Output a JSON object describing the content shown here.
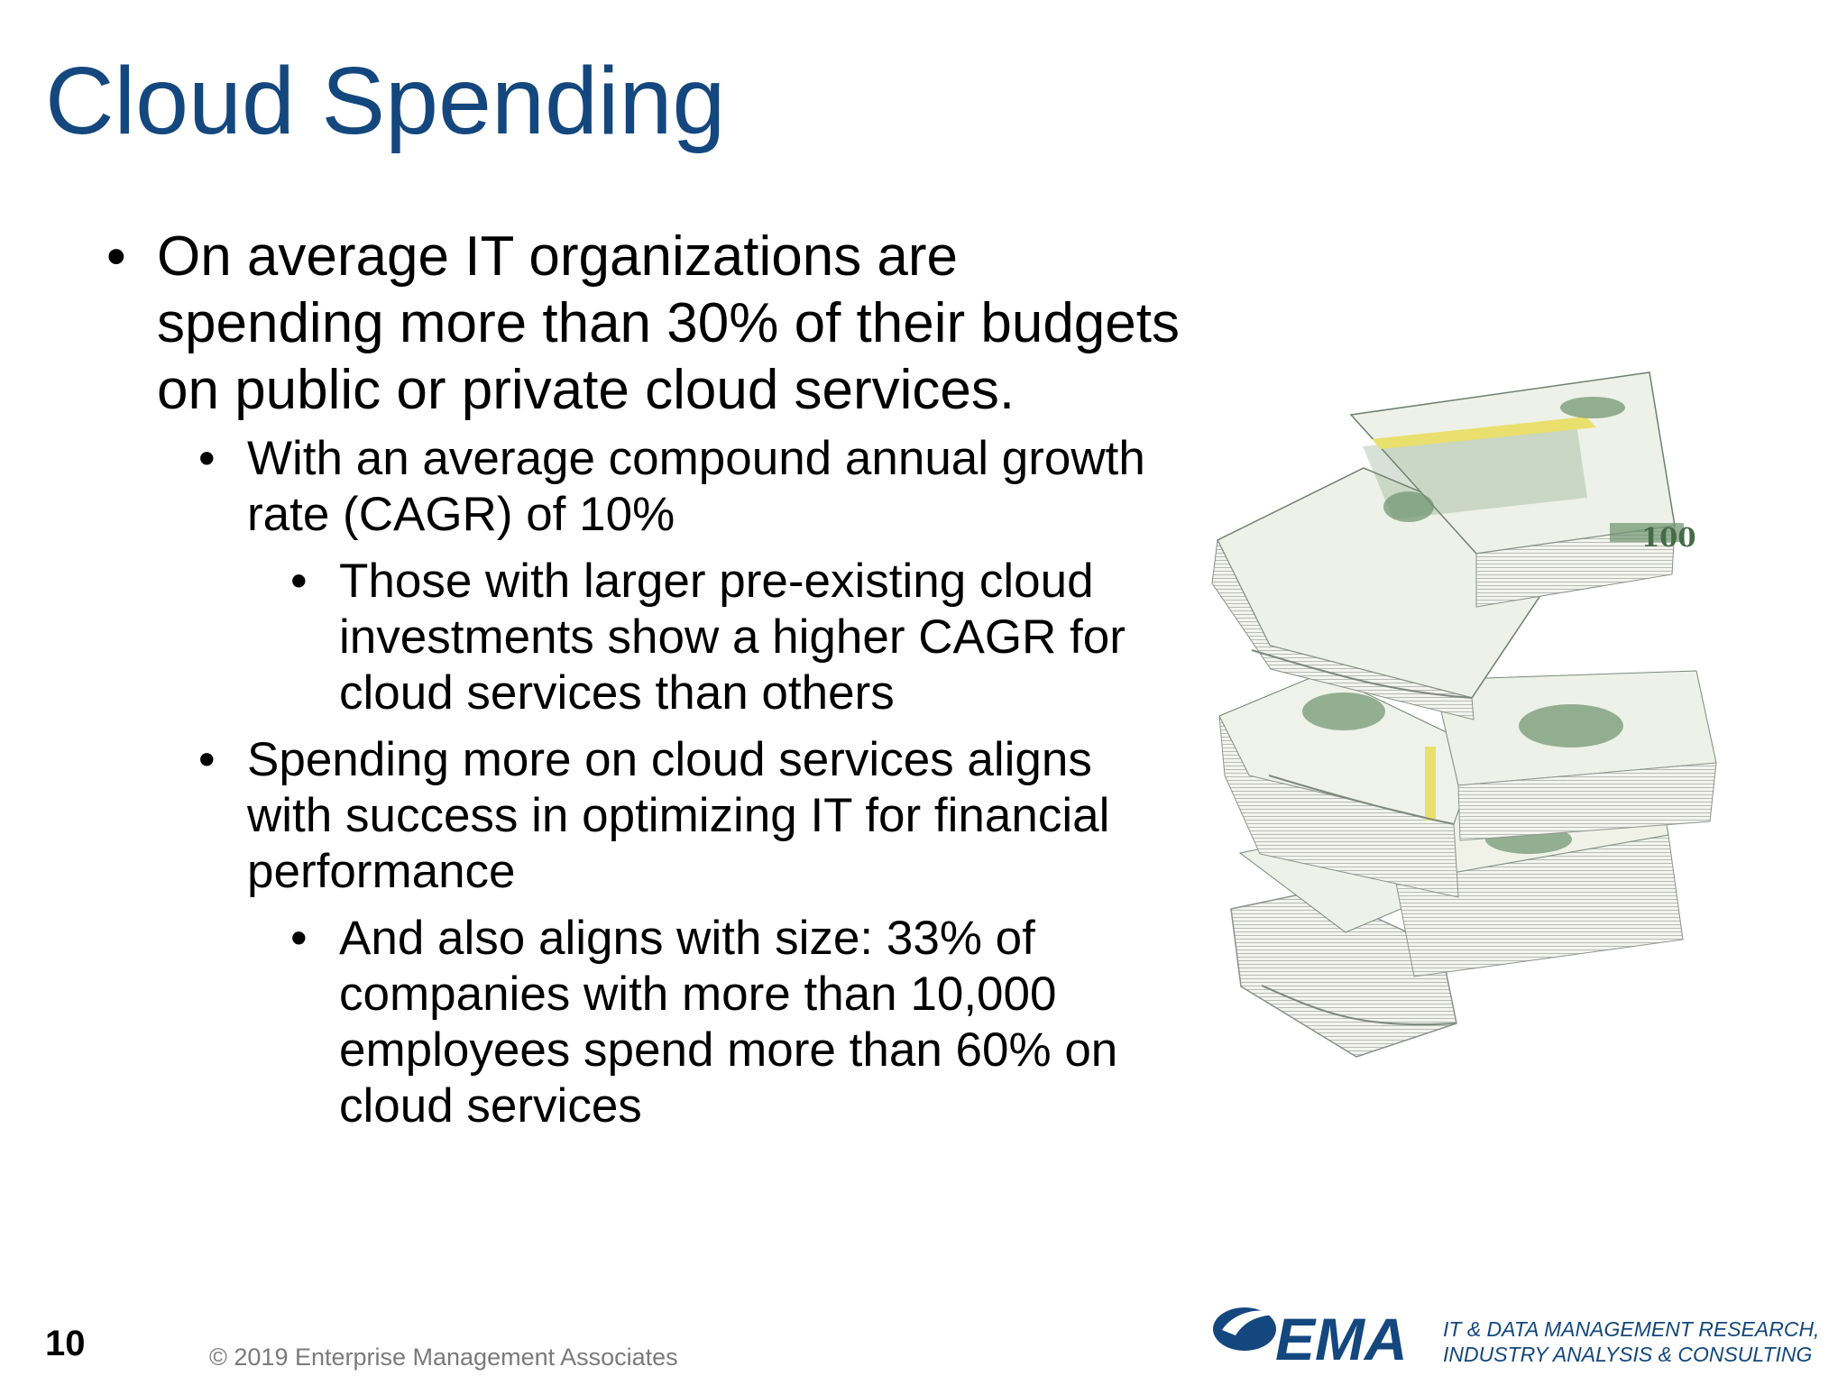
{
  "colors": {
    "title": "#14477e",
    "brand_blue": "#14477e",
    "bullet_text": "#000000",
    "footer_gray": "#7a7a7a",
    "cash_green": "#6f9470",
    "band_yellow": "#e9df6c"
  },
  "slide": {
    "title": "Cloud Spending",
    "bullets": [
      {
        "level": 1,
        "marker": "•",
        "text": "On average IT organizations are spending more than 30% of their budgets on public or private cloud services."
      },
      {
        "level": 2,
        "marker": "•",
        "text": "With an average compound annual growth rate (CAGR) of 10%"
      },
      {
        "level": 3,
        "marker": "•",
        "text": "Those with larger pre-existing cloud investments show a higher CAGR for cloud services than others"
      },
      {
        "level": 2,
        "marker": "•",
        "text": "Spending more on cloud services aligns with success in optimizing IT for financial performance"
      },
      {
        "level": 3,
        "marker": "•",
        "text": "And also aligns with size: 33% of companies with more than 10,000 employees spend more than 60% on cloud services"
      }
    ],
    "image": {
      "icon": "money-stack-icon"
    }
  },
  "footer": {
    "page_number": "10",
    "copyright": "© 2019 Enterprise Management Associates",
    "logo_text": "EMA",
    "logo_icon": "ema-swoosh-icon",
    "tagline_line1": "IT & DATA MANAGEMENT RESEARCH,",
    "tagline_line2": "INDUSTRY ANALYSIS & CONSULTING"
  }
}
